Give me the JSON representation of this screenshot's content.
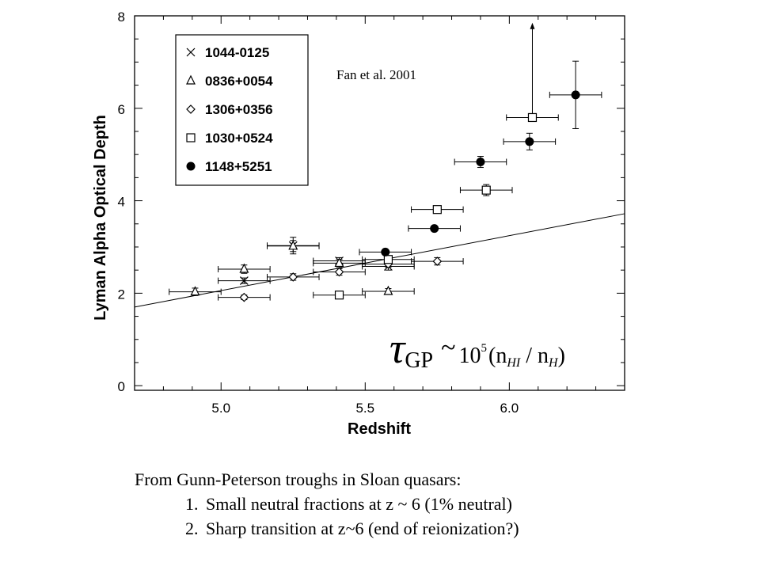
{
  "chart_data": {
    "type": "scatter",
    "xlabel": "Redshift",
    "ylabel": "Lyman Alpha Optical Depth",
    "xlim": [
      4.7,
      6.4
    ],
    "ylim": [
      -0.1,
      8.0
    ],
    "x_ticks": [
      5.0,
      5.5,
      6.0
    ],
    "x_tick_labels": [
      "5.0",
      "5.5",
      "6.0"
    ],
    "y_ticks": [
      0,
      2,
      4,
      6,
      8
    ],
    "y_tick_labels": [
      "0",
      "2",
      "4",
      "6",
      "8"
    ],
    "grid": false,
    "legend_position": "top-left",
    "annotation": "Fan et al. 2001",
    "formula": {
      "tau": "τ",
      "subscript": "GP",
      "sim": "~",
      "base": "10",
      "exponent": "5",
      "rest": "(n",
      "sub1": "HI",
      "mid": " / n",
      "sub2": "H",
      "close": ")"
    },
    "trend_line": {
      "x": [
        4.7,
        6.4
      ],
      "y": [
        1.7,
        3.72
      ]
    },
    "series": [
      {
        "name": "1044-0125",
        "marker": "x",
        "points": [
          {
            "x": 5.08,
            "y": 2.27,
            "xerr": 0.09,
            "yerr": 0.06
          },
          {
            "x": 5.25,
            "y": 3.03,
            "xerr": 0.09,
            "yerr": 0.18
          },
          {
            "x": 5.41,
            "y": 2.7,
            "xerr": 0.09,
            "yerr": 0.07
          },
          {
            "x": 5.58,
            "y": 2.58,
            "xerr": 0.09,
            "yerr": 0.08
          }
        ]
      },
      {
        "name": "0836+0054",
        "marker": "triangle",
        "points": [
          {
            "x": 4.91,
            "y": 2.03,
            "xerr": 0.09,
            "yerr": 0.08
          },
          {
            "x": 5.08,
            "y": 2.52,
            "xerr": 0.09,
            "yerr": 0.09
          },
          {
            "x": 5.25,
            "y": 3.02,
            "xerr": 0.09,
            "yerr": 0.12
          },
          {
            "x": 5.41,
            "y": 2.65,
            "xerr": 0.09,
            "yerr": 0.08
          },
          {
            "x": 5.58,
            "y": 2.04,
            "xerr": 0.09,
            "yerr": 0.06
          }
        ]
      },
      {
        "name": "1306+0356",
        "marker": "diamond",
        "points": [
          {
            "x": 5.08,
            "y": 1.91,
            "xerr": 0.09,
            "yerr": 0.05
          },
          {
            "x": 5.25,
            "y": 2.35,
            "xerr": 0.09,
            "yerr": 0.07
          },
          {
            "x": 5.41,
            "y": 2.46,
            "xerr": 0.09,
            "yerr": 0.07
          },
          {
            "x": 5.58,
            "y": 2.63,
            "xerr": 0.09,
            "yerr": 0.07
          },
          {
            "x": 5.75,
            "y": 2.69,
            "xerr": 0.09,
            "yerr": 0.08
          }
        ]
      },
      {
        "name": "1030+0524",
        "marker": "square",
        "points": [
          {
            "x": 5.41,
            "y": 1.96,
            "xerr": 0.09,
            "yerr": 0.05
          },
          {
            "x": 5.58,
            "y": 2.73,
            "xerr": 0.09,
            "yerr": 0.07
          },
          {
            "x": 5.75,
            "y": 3.81,
            "xerr": 0.09,
            "yerr": 0.07
          },
          {
            "x": 5.92,
            "y": 4.23,
            "xerr": 0.09,
            "yerr": 0.12
          },
          {
            "x": 6.08,
            "y": 5.8,
            "xerr": 0.09,
            "yerr": 0.0,
            "lower_limit": true,
            "arrow_to": 7.85
          }
        ]
      },
      {
        "name": "1148+5251",
        "marker": "filled-circle",
        "points": [
          {
            "x": 5.57,
            "y": 2.89,
            "xerr": 0.09,
            "yerr": 0.04
          },
          {
            "x": 5.74,
            "y": 3.4,
            "xerr": 0.09,
            "yerr": 0.03
          },
          {
            "x": 5.9,
            "y": 4.84,
            "xerr": 0.09,
            "yerr": 0.12
          },
          {
            "x": 6.07,
            "y": 5.28,
            "xerr": 0.09,
            "yerr": 0.18
          },
          {
            "x": 6.23,
            "y": 6.29,
            "xerr": 0.09,
            "yerr": 0.73
          }
        ]
      }
    ]
  },
  "caption": {
    "intro": "From Gunn-Peterson troughs in Sloan quasars:",
    "items": [
      "Small neutral fractions at z ~ 6 (1% neutral)",
      "Sharp transition at z~6 (end of reionization?)"
    ]
  }
}
